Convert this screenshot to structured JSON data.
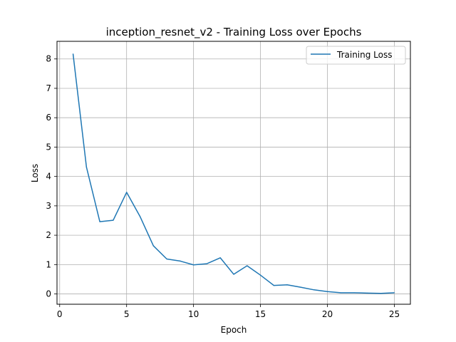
{
  "chart_data": {
    "type": "line",
    "title": "inception_resnet_v2 - Training Loss over Epochs",
    "xlabel": "Epoch",
    "ylabel": "Loss",
    "xlim": [
      -0.2,
      26.2
    ],
    "ylim": [
      -0.35,
      8.6
    ],
    "xticks": [
      0,
      5,
      10,
      15,
      20,
      25
    ],
    "yticks": [
      0,
      1,
      2,
      3,
      4,
      5,
      6,
      7,
      8
    ],
    "grid": true,
    "legend_position": "top-right",
    "series": [
      {
        "name": "Training Loss",
        "color": "#1f77b4",
        "x": [
          1,
          2,
          3,
          4,
          5,
          6,
          7,
          8,
          9,
          10,
          11,
          12,
          13,
          14,
          15,
          16,
          17,
          18,
          19,
          20,
          21,
          22,
          23,
          24,
          25
        ],
        "y": [
          8.17,
          4.32,
          2.46,
          2.51,
          3.46,
          2.64,
          1.64,
          1.19,
          1.12,
          0.99,
          1.03,
          1.23,
          0.67,
          0.96,
          0.64,
          0.29,
          0.31,
          0.23,
          0.14,
          0.08,
          0.04,
          0.04,
          0.03,
          0.02,
          0.04
        ]
      }
    ]
  }
}
